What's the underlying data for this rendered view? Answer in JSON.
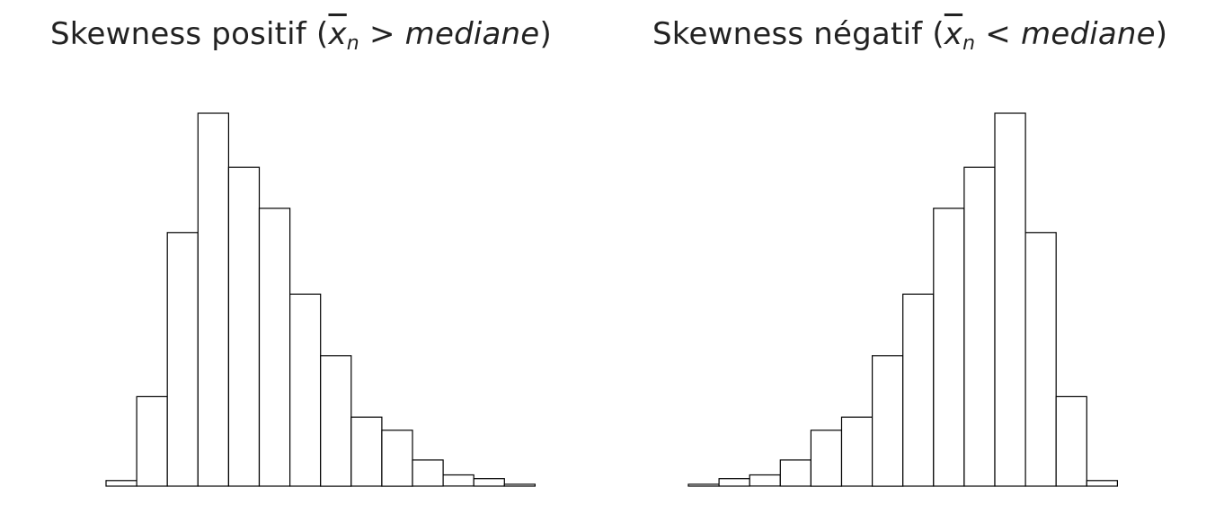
{
  "chart_data": [
    {
      "type": "bar",
      "title_text": "Skewness positif (",
      "title_symbol": "x",
      "title_subscript": "n",
      "title_relation": " > ",
      "title_italic": "mediane",
      "title_close": ")",
      "title": "Skewness positif (x̄n > mediane)",
      "xlabel": "",
      "ylabel": "",
      "grid": false,
      "axes_visible": false,
      "ylim": [
        0,
        100
      ],
      "values": [
        1.5,
        24,
        68,
        100,
        85.5,
        74.5,
        51.5,
        35,
        18.5,
        15,
        7,
        3,
        2,
        0.5
      ]
    },
    {
      "type": "bar",
      "title_text": "Skewness négatif (",
      "title_symbol": "x",
      "title_subscript": "n",
      "title_relation": " < ",
      "title_italic": "mediane",
      "title_close": ")",
      "title": "Skewness négatif (x̄n < mediane)",
      "xlabel": "",
      "ylabel": "",
      "grid": false,
      "axes_visible": false,
      "ylim": [
        0,
        100
      ],
      "values": [
        0.5,
        2,
        3,
        7,
        15,
        18.5,
        35,
        51.5,
        74.5,
        85.5,
        100,
        68,
        24,
        1.5
      ]
    }
  ]
}
